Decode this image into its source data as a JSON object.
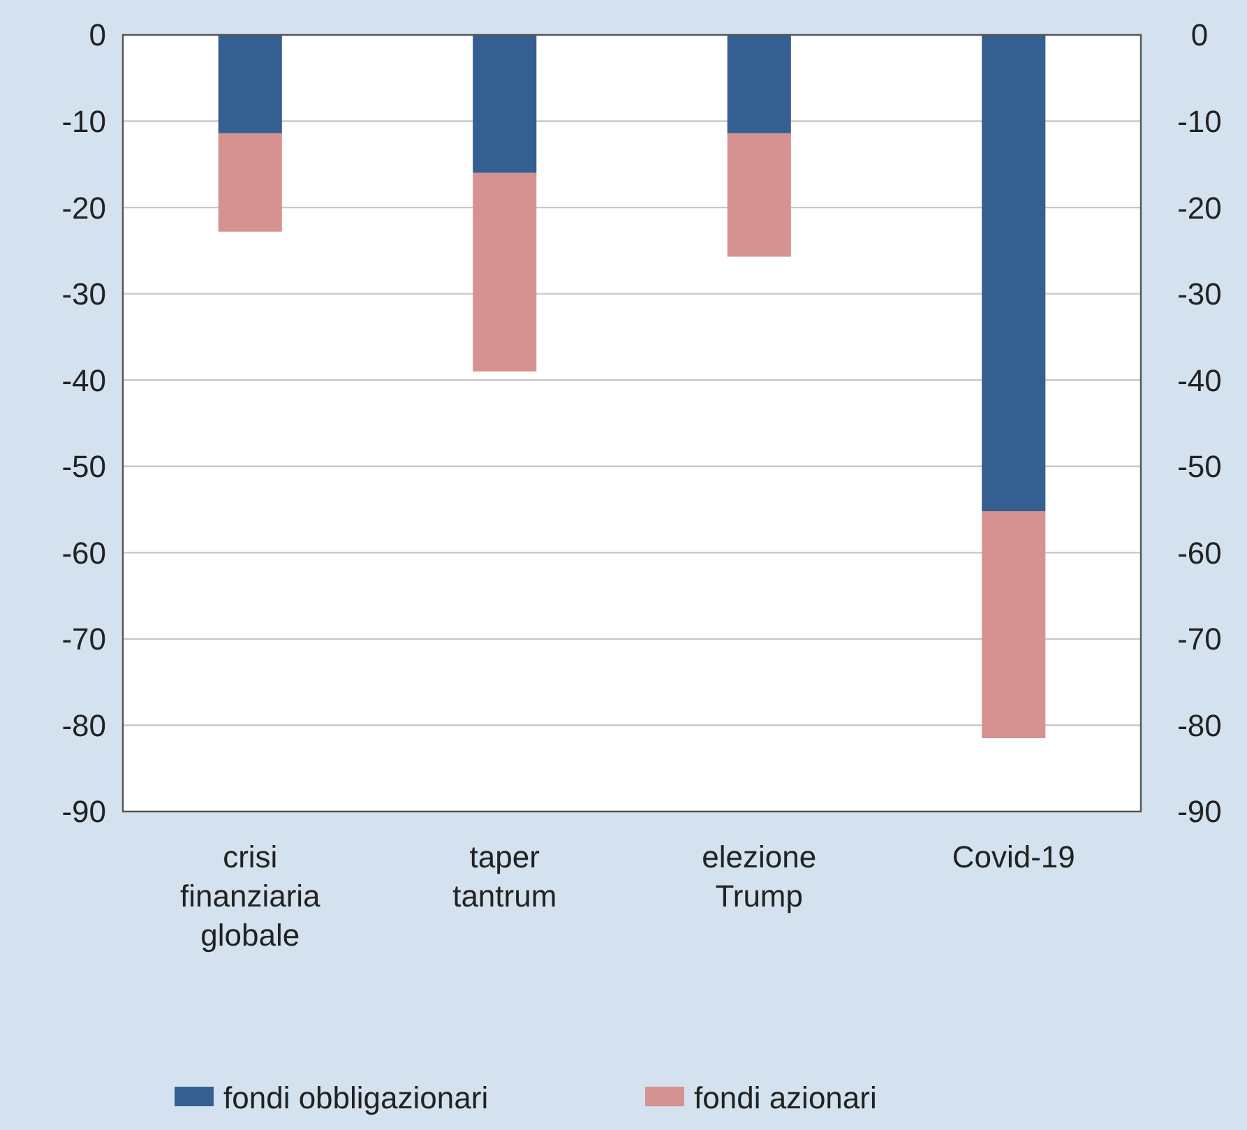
{
  "chart_data": {
    "type": "bar",
    "stacked": true,
    "categories": [
      "crisi finanziaria globale",
      "taper tantrum",
      "elezione Trump",
      "Covid-19"
    ],
    "series": [
      {
        "name": "fondi obbligazionari",
        "color": "#355f91",
        "values": [
          -11.4,
          -16.0,
          -11.4,
          -55.2
        ]
      },
      {
        "name": "fondi azionari",
        "color": "#d69291",
        "values": [
          -11.4,
          -23.0,
          -14.3,
          -26.3
        ]
      }
    ],
    "ylim": [
      -90,
      0
    ],
    "yticks": [
      0,
      -10,
      -20,
      -30,
      -40,
      -50,
      -60,
      -70,
      -80,
      -90
    ],
    "y2lim": [
      -90,
      0
    ],
    "y2ticks": [
      0,
      -10,
      -20,
      -30,
      -40,
      -50,
      -60,
      -70,
      -80,
      -90
    ],
    "grid": "y",
    "legend": "bottom"
  }
}
